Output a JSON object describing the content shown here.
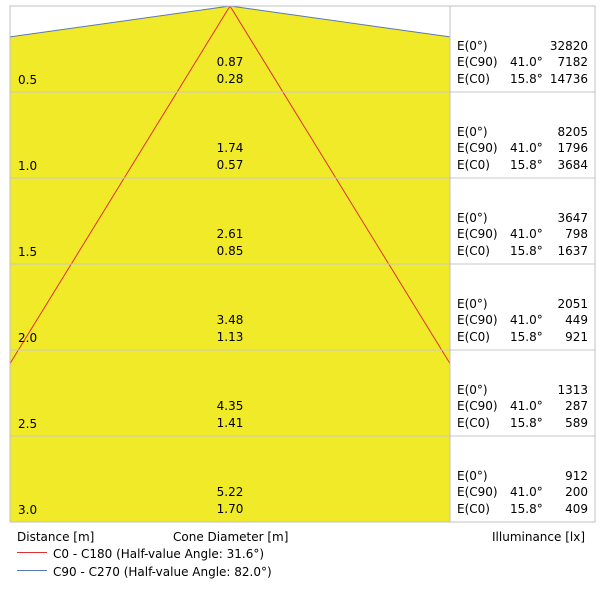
{
  "chart_data": {
    "type": "table",
    "title": "",
    "rows": [
      {
        "distance": "0.5",
        "d_c90": "0.87",
        "d_c0": "0.28",
        "e0": "32820",
        "e_c90": "7182",
        "e_c0": "14736"
      },
      {
        "distance": "1.0",
        "d_c90": "1.74",
        "d_c0": "0.57",
        "e0": "8205",
        "e_c90": "1796",
        "e_c0": "3684"
      },
      {
        "distance": "1.5",
        "d_c90": "2.61",
        "d_c0": "0.85",
        "e0": "3647",
        "e_c90": "798",
        "e_c0": "1637"
      },
      {
        "distance": "2.0",
        "d_c90": "3.48",
        "d_c0": "1.13",
        "e0": "2051",
        "e_c90": "449",
        "e_c0": "921"
      },
      {
        "distance": "2.5",
        "d_c90": "4.35",
        "d_c0": "1.41",
        "e0": "1313",
        "e_c90": "287",
        "e_c0": "589"
      },
      {
        "distance": "3.0",
        "d_c90": "5.22",
        "d_c0": "1.70",
        "e0": "912",
        "e_c90": "200",
        "e_c0": "409"
      }
    ],
    "row_labels": {
      "e0": "E(0°)",
      "e_c90": "E(C90)",
      "e_c0": "E(C0)"
    },
    "angle_c90": "41.0°",
    "angle_c0": "15.8°",
    "half_angle_c0": 31.6,
    "half_angle_c90": 82.0,
    "max_distance": 3.0,
    "xlabel_left": "Distance [m]",
    "xlabel_center": "Cone Diameter [m]",
    "xlabel_right": "Illuminance [lx]",
    "legend": [
      {
        "label": "C0 - C180 (Half-value Angle: 31.6°)",
        "color": "#e03030"
      },
      {
        "label": "C90 - C270 (Half-value Angle: 82.0°)",
        "color": "#5a78b4"
      }
    ],
    "cone_color": "#f0ea28"
  }
}
